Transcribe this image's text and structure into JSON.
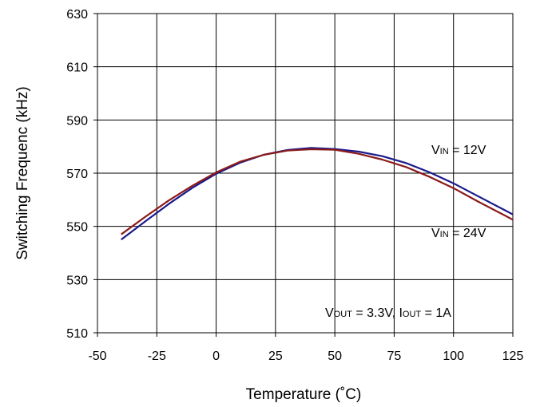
{
  "chart_data": {
    "type": "line",
    "xlabel": "Temperature (˚C)",
    "ylabel": "Switching Frequenc (kHz)",
    "xlim": [
      -50,
      125
    ],
    "ylim": [
      510,
      630
    ],
    "x_ticks": [
      "-50",
      "-25",
      "0",
      "25",
      "50",
      "75",
      "100",
      "125"
    ],
    "y_ticks": [
      "630",
      "610",
      "590",
      "570",
      "550",
      "530",
      "510"
    ],
    "grid": true,
    "x": [
      -40,
      -30,
      -20,
      -10,
      0,
      10,
      20,
      30,
      40,
      50,
      60,
      70,
      80,
      90,
      100,
      110,
      125
    ],
    "series": [
      {
        "name": "VIN = 12V",
        "color": "#1a1a8c",
        "values": [
          545.0,
          551.8,
          558.4,
          564.5,
          569.8,
          573.9,
          576.9,
          578.7,
          579.5,
          579.1,
          578.1,
          576.4,
          573.8,
          570.3,
          566.2,
          561.5,
          554.5
        ]
      },
      {
        "name": "VIN = 24V",
        "color": "#8b1a1a",
        "values": [
          547.0,
          553.5,
          559.7,
          565.3,
          570.3,
          574.3,
          576.9,
          578.5,
          579.0,
          578.8,
          577.3,
          575.1,
          572.3,
          568.6,
          564.4,
          559.5,
          552.5
        ]
      }
    ],
    "annotations": [
      {
        "V": "V",
        "sub": "IN",
        "rest": " = 12V"
      },
      {
        "V": "V",
        "sub": "IN",
        "rest": " = 24V"
      },
      {
        "V": "V",
        "sub": "OUT",
        "rest": " = 3.3V, I",
        "sub2": "OUT",
        "rest2": " = 1A"
      }
    ]
  }
}
